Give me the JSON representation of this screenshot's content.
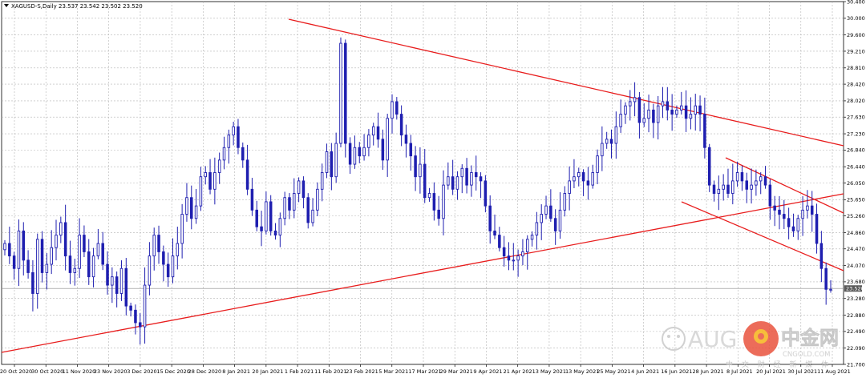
{
  "chart_data": {
    "type": "candlestick",
    "header": {
      "symbol": "XAGUSD-S,Daily",
      "ohlc": "23.537 23.542 23.502 23.520"
    },
    "y_ticks": [
      "30.400",
      "30.000",
      "29.600",
      "29.210",
      "28.810",
      "28.420",
      "28.020",
      "27.630",
      "27.230",
      "26.840",
      "26.440",
      "26.050",
      "25.650",
      "25.260",
      "24.860",
      "24.470",
      "24.070",
      "23.680",
      "23.280",
      "22.880",
      "22.490",
      "22.090",
      "21.700"
    ],
    "ylim": [
      21.7,
      30.4
    ],
    "current_price_label": "23.520",
    "current_price": 23.52,
    "x_ticks": [
      "20 Oct 2020",
      "30 Oct 2020",
      "11 Nov 2020",
      "23 Nov 2020",
      "3 Dec 2020",
      "15 Dec 2020",
      "28 Dec 2020",
      "8 Jan 2021",
      "20 Jan 2021",
      "1 Feb 2021",
      "11 Feb 2021",
      "23 Feb 2021",
      "5 Mar 2021",
      "17 Mar 2021",
      "29 Mar 2021",
      "9 Apr 2021",
      "21 Apr 2021",
      "3 May 2021",
      "13 May 2021",
      "25 May 2021",
      "4 Jun 2021",
      "16 Jun 2021",
      "28 Jun 2021",
      "8 Jul 2021",
      "20 Jul 2021",
      "30 Jul 2021",
      "11 Aug 2021"
    ],
    "closes": [
      24.6,
      24.3,
      24.0,
      24.9,
      24.2,
      23.9,
      23.4,
      24.7,
      23.9,
      24.1,
      24.5,
      24.8,
      25.1,
      24.3,
      23.9,
      24.0,
      24.8,
      24.4,
      23.8,
      24.3,
      24.6,
      24.1,
      23.6,
      23.8,
      23.4,
      24.0,
      23.1,
      23.0,
      22.7,
      22.6,
      23.6,
      24.3,
      24.8,
      24.4,
      24.1,
      23.8,
      24.3,
      24.6,
      25.3,
      25.7,
      25.2,
      25.5,
      26.2,
      26.3,
      25.9,
      26.3,
      26.6,
      26.9,
      27.2,
      27.4,
      26.9,
      26.6,
      25.9,
      25.4,
      25.0,
      24.9,
      25.6,
      24.9,
      24.8,
      25.2,
      25.7,
      25.4,
      25.8,
      26.1,
      25.7,
      25.1,
      25.4,
      25.9,
      26.3,
      26.8,
      26.2,
      27.0,
      29.4,
      27.0,
      26.5,
      26.9,
      26.7,
      26.9,
      27.2,
      27.4,
      27.1,
      26.6,
      27.6,
      28.0,
      27.7,
      27.2,
      27.0,
      26.7,
      26.2,
      26.5,
      25.7,
      25.8,
      25.4,
      25.2,
      26.0,
      26.2,
      25.9,
      26.2,
      26.4,
      26.0,
      26.3,
      26.2,
      26.1,
      25.5,
      24.9,
      24.8,
      24.5,
      24.3,
      24.2,
      24.2,
      24.3,
      24.4,
      24.7,
      24.8,
      25.1,
      25.3,
      25.5,
      25.2,
      24.9,
      25.4,
      25.8,
      26.1,
      26.2,
      26.3,
      26.1,
      26.0,
      26.3,
      26.7,
      27.0,
      27.1,
      27.0,
      27.4,
      27.7,
      27.9,
      28.0,
      28.1,
      27.5,
      27.6,
      27.8,
      27.5,
      27.9,
      28.0,
      27.8,
      27.7,
      27.8,
      27.9,
      27.6,
      27.7,
      27.9,
      27.7,
      26.9,
      26.0,
      25.8,
      25.9,
      26.0,
      25.8,
      26.1,
      26.3,
      26.1,
      25.9,
      26.0,
      26.1,
      26.2,
      26.0,
      25.5,
      25.4,
      25.3,
      25.2,
      25.0,
      24.9,
      25.2,
      25.4,
      25.5,
      25.3,
      24.6,
      24.0,
      23.5,
      23.5
    ]
  },
  "watermark": {
    "left_text": "AUG",
    "cn_title": "中金网",
    "cn_sub": "中 文 财 经 新 媒 体",
    "domain": "CNGOLD.COM"
  }
}
